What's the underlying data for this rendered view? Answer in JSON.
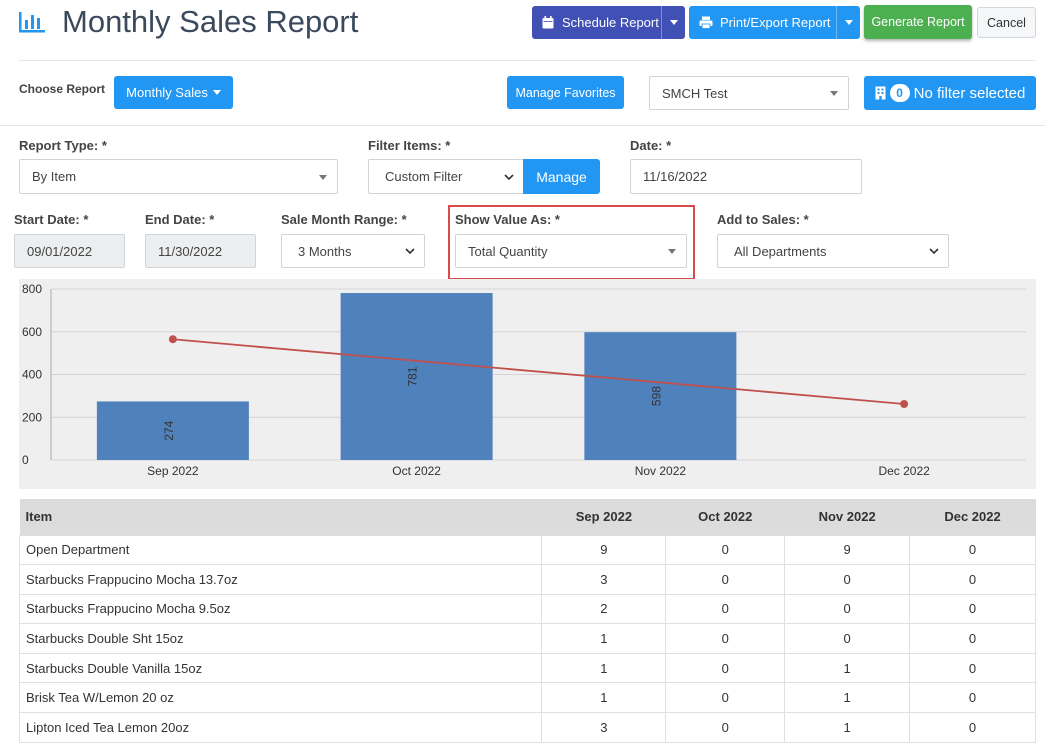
{
  "header": {
    "title": "Monthly Sales Report",
    "schedule_label": "Schedule Report",
    "print_label": "Print/Export Report",
    "generate_label": "Generate Report",
    "cancel_label": "Cancel"
  },
  "toolbar": {
    "choose_report_label": "Choose Report",
    "report_selected": "Monthly Sales",
    "manage_favorites_label": "Manage Favorites",
    "store_selected": "SMCH Test",
    "filter_count": "0",
    "filter_label": "No filter selected"
  },
  "form": {
    "report_type_label": "Report Type: *",
    "report_type_value": "By Item",
    "filter_items_label": "Filter Items: *",
    "filter_items_value": "Custom Filter",
    "manage_label": "Manage",
    "date_label": "Date: *",
    "date_value": "11/16/2022",
    "start_date_label": "Start Date: *",
    "start_date_value": "09/01/2022",
    "end_date_label": "End Date: *",
    "end_date_value": "11/30/2022",
    "month_range_label": "Sale Month Range: *",
    "month_range_value": "3 Months",
    "show_value_label": "Show Value As: *",
    "show_value_value": "Total Quantity",
    "add_to_sales_label": "Add to Sales: *",
    "add_to_sales_value": "All Departments"
  },
  "colors": {
    "bar": "#4f81bd",
    "line": "#c0504d",
    "accent": "#2196f3"
  },
  "chart_data": {
    "type": "bar",
    "categories": [
      "Sep 2022",
      "Oct 2022",
      "Nov 2022",
      "Dec 2022"
    ],
    "series": [
      {
        "type": "bar",
        "values": [
          274,
          781,
          598,
          0
        ]
      },
      {
        "type": "line",
        "values": [
          565,
          null,
          null,
          262
        ]
      }
    ],
    "bar_labels": [
      "274",
      "781",
      "598"
    ],
    "yticks": [
      "800",
      "600",
      "400",
      "200",
      "0"
    ],
    "ylim": [
      0,
      800
    ],
    "grid": true
  },
  "table": {
    "columns": [
      "Item",
      "Sep 2022",
      "Oct 2022",
      "Nov 2022",
      "Dec 2022"
    ],
    "rows": [
      [
        "Open Department",
        "9",
        "0",
        "9",
        "0"
      ],
      [
        "Starbucks Frappucino Mocha 13.7oz",
        "3",
        "0",
        "0",
        "0"
      ],
      [
        "Starbucks Frappucino Mocha 9.5oz",
        "2",
        "0",
        "0",
        "0"
      ],
      [
        "Starbucks Double Sht 15oz",
        "1",
        "0",
        "0",
        "0"
      ],
      [
        "Starbucks Double Vanilla 15oz",
        "1",
        "0",
        "1",
        "0"
      ],
      [
        "Brisk Tea W/Lemon 20 oz",
        "1",
        "0",
        "1",
        "0"
      ],
      [
        "Lipton Iced Tea Lemon 20oz",
        "3",
        "0",
        "1",
        "0"
      ]
    ]
  }
}
